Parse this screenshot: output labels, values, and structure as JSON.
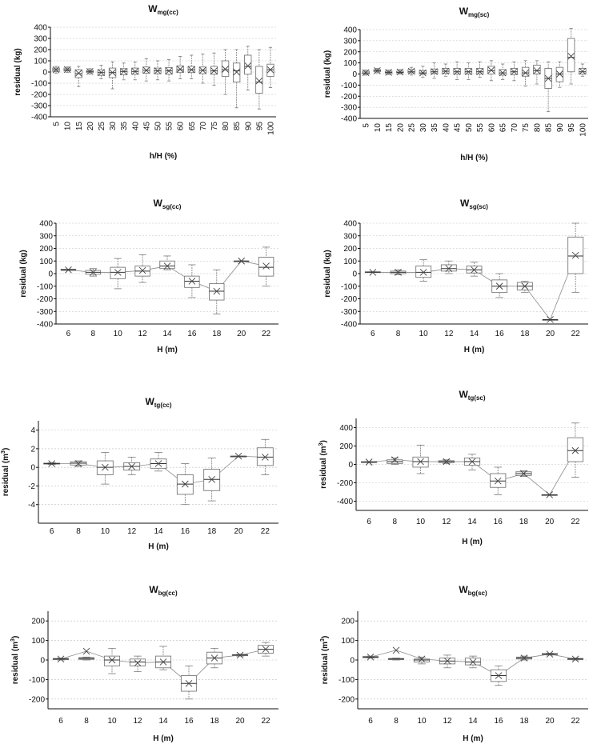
{
  "chart_data": [
    {
      "type": "box",
      "title": {
        "main": "W",
        "sub": "mg(cc)"
      },
      "ylabel": "residual (kg)",
      "ylabel_sup": "",
      "xlabel": "h/H (%)",
      "ylim": [
        -400,
        400
      ],
      "yticks": [
        -400,
        -300,
        -200,
        -100,
        0,
        100,
        200,
        300,
        400
      ],
      "categories": [
        "5",
        "10",
        "15",
        "20",
        "25",
        "30",
        "35",
        "40",
        "45",
        "50",
        "55",
        "60",
        "65",
        "70",
        "75",
        "80",
        "85",
        "90",
        "95",
        "100"
      ],
      "boxes": [
        {
          "min": -10,
          "q1": 5,
          "median": 20,
          "q3": 35,
          "max": 50,
          "mean": 20
        },
        {
          "min": -5,
          "q1": 10,
          "median": 20,
          "q3": 35,
          "max": 45,
          "mean": 22
        },
        {
          "min": -130,
          "q1": -50,
          "median": -15,
          "q3": 20,
          "max": 50,
          "mean": -10
        },
        {
          "min": -20,
          "q1": -5,
          "median": 5,
          "q3": 15,
          "max": 30,
          "mean": 5
        },
        {
          "min": -60,
          "q1": -30,
          "median": -5,
          "q3": 20,
          "max": 60,
          "mean": -5
        },
        {
          "min": -150,
          "q1": -50,
          "median": -5,
          "q3": 35,
          "max": 90,
          "mean": -5
        },
        {
          "min": -70,
          "q1": -25,
          "median": 5,
          "q3": 30,
          "max": 80,
          "mean": 5
        },
        {
          "min": -70,
          "q1": -20,
          "median": 5,
          "q3": 35,
          "max": 90,
          "mean": 5
        },
        {
          "min": -80,
          "q1": -10,
          "median": 15,
          "q3": 45,
          "max": 120,
          "mean": 15
        },
        {
          "min": -70,
          "q1": -15,
          "median": 10,
          "q3": 35,
          "max": 100,
          "mean": 10
        },
        {
          "min": -80,
          "q1": -20,
          "median": 10,
          "q3": 40,
          "max": 110,
          "mean": 10
        },
        {
          "min": -60,
          "q1": -5,
          "median": 20,
          "q3": 55,
          "max": 140,
          "mean": 25
        },
        {
          "min": -60,
          "q1": -5,
          "median": 20,
          "q3": 50,
          "max": 150,
          "mean": 20
        },
        {
          "min": -100,
          "q1": -15,
          "median": 15,
          "q3": 45,
          "max": 160,
          "mean": 15
        },
        {
          "min": -120,
          "q1": -20,
          "median": 10,
          "q3": 50,
          "max": 170,
          "mean": 10
        },
        {
          "min": -200,
          "q1": -40,
          "median": 20,
          "q3": 100,
          "max": 200,
          "mean": 25
        },
        {
          "min": -320,
          "q1": -90,
          "median": 10,
          "q3": 80,
          "max": 200,
          "mean": 0
        },
        {
          "min": -160,
          "q1": -20,
          "median": 50,
          "q3": 150,
          "max": 230,
          "mean": 55
        },
        {
          "min": -330,
          "q1": -190,
          "median": -90,
          "q3": 50,
          "max": 200,
          "mean": -80
        },
        {
          "min": -140,
          "q1": -40,
          "median": 20,
          "q3": 70,
          "max": 220,
          "mean": 20
        }
      ],
      "tick_rotation": -90,
      "mean_line": false
    },
    {
      "type": "box",
      "title": {
        "main": "W",
        "sub": "mg(sc)"
      },
      "ylabel": "residual (kg)",
      "ylabel_sup": "",
      "xlabel": "h/H (%)",
      "ylim": [
        -400,
        400
      ],
      "yticks": [
        -400,
        -300,
        -200,
        -100,
        0,
        100,
        200,
        300,
        400
      ],
      "categories": [
        "5",
        "10",
        "15",
        "20",
        "25",
        "30",
        "35",
        "40",
        "45",
        "50",
        "55",
        "60",
        "65",
        "70",
        "75",
        "80",
        "85",
        "90",
        "95",
        "100"
      ],
      "boxes": [
        {
          "min": -10,
          "q1": 0,
          "median": 10,
          "q3": 25,
          "max": 35,
          "mean": 12
        },
        {
          "min": 10,
          "q1": 20,
          "median": 30,
          "q3": 40,
          "max": 50,
          "mean": 30
        },
        {
          "min": -5,
          "q1": 5,
          "median": 15,
          "q3": 25,
          "max": 35,
          "mean": 15
        },
        {
          "min": 0,
          "q1": 10,
          "median": 15,
          "q3": 25,
          "max": 40,
          "mean": 18
        },
        {
          "min": -10,
          "q1": 10,
          "median": 20,
          "q3": 40,
          "max": 60,
          "mean": 25
        },
        {
          "min": -30,
          "q1": 0,
          "median": 10,
          "q3": 30,
          "max": 70,
          "mean": 10
        },
        {
          "min": -40,
          "q1": 5,
          "median": 20,
          "q3": 45,
          "max": 100,
          "mean": 20
        },
        {
          "min": -20,
          "q1": 5,
          "median": 25,
          "q3": 50,
          "max": 90,
          "mean": 25
        },
        {
          "min": -50,
          "q1": 0,
          "median": 20,
          "q3": 50,
          "max": 110,
          "mean": 20
        },
        {
          "min": -50,
          "q1": 0,
          "median": 20,
          "q3": 50,
          "max": 100,
          "mean": 20
        },
        {
          "min": -30,
          "q1": 0,
          "median": 20,
          "q3": 50,
          "max": 110,
          "mean": 20
        },
        {
          "min": -60,
          "q1": 0,
          "median": 30,
          "q3": 70,
          "max": 120,
          "mean": 35
        },
        {
          "min": -50,
          "q1": -10,
          "median": 10,
          "q3": 40,
          "max": 90,
          "mean": 10
        },
        {
          "min": -60,
          "q1": -5,
          "median": 20,
          "q3": 50,
          "max": 110,
          "mean": 20
        },
        {
          "min": -110,
          "q1": -20,
          "median": 10,
          "q3": 60,
          "max": 120,
          "mean": 10
        },
        {
          "min": -90,
          "q1": 0,
          "median": 30,
          "q3": 80,
          "max": 120,
          "mean": 30
        },
        {
          "min": -340,
          "q1": -130,
          "median": -40,
          "q3": 50,
          "max": 110,
          "mean": -40
        },
        {
          "min": -120,
          "q1": -70,
          "median": 0,
          "q3": 60,
          "max": 110,
          "mean": 0
        },
        {
          "min": -90,
          "q1": 20,
          "median": 150,
          "q3": 320,
          "max": 410,
          "mean": 160
        },
        {
          "min": -20,
          "q1": 0,
          "median": 20,
          "q3": 50,
          "max": 90,
          "mean": 25
        }
      ],
      "tick_rotation": -90,
      "mean_line": false
    },
    {
      "type": "box",
      "title": {
        "main": "W",
        "sub": "sg(cc)"
      },
      "ylabel": "residual (kg)",
      "ylabel_sup": "",
      "xlabel": "H (m)",
      "ylim": [
        -400,
        400
      ],
      "yticks": [
        -400,
        -300,
        -200,
        -100,
        0,
        100,
        200,
        300,
        400
      ],
      "categories": [
        "6",
        "8",
        "10",
        "12",
        "14",
        "16",
        "18",
        "20",
        "22"
      ],
      "boxes": [
        {
          "min": 25,
          "q1": 25,
          "median": 30,
          "q3": 35,
          "max": 35,
          "mean": 30
        },
        {
          "min": -20,
          "q1": -5,
          "median": 10,
          "q3": 25,
          "max": 40,
          "mean": 10
        },
        {
          "min": -120,
          "q1": -40,
          "median": 10,
          "q3": 50,
          "max": 120,
          "mean": 10
        },
        {
          "min": -70,
          "q1": -20,
          "median": 20,
          "q3": 60,
          "max": 150,
          "mean": 25
        },
        {
          "min": 30,
          "q1": 40,
          "median": 60,
          "q3": 100,
          "max": 140,
          "mean": 60
        },
        {
          "min": -190,
          "q1": -110,
          "median": -60,
          "q3": -20,
          "max": 70,
          "mean": -60
        },
        {
          "min": -320,
          "q1": -210,
          "median": -140,
          "q3": -80,
          "max": 30,
          "mean": -140
        },
        {
          "min": 100,
          "q1": 100,
          "median": 100,
          "q3": 100,
          "max": 100,
          "mean": 100
        },
        {
          "min": -100,
          "q1": -20,
          "median": 50,
          "q3": 130,
          "max": 210,
          "mean": 60
        }
      ],
      "tick_rotation": 0,
      "mean_line": true
    },
    {
      "type": "box",
      "title": {
        "main": "W",
        "sub": "sg(sc)"
      },
      "ylabel": "residual (kg)",
      "ylabel_sup": "",
      "xlabel": "H (m)",
      "ylim": [
        -400,
        400
      ],
      "yticks": [
        -400,
        -300,
        -200,
        -100,
        0,
        100,
        200,
        300,
        400
      ],
      "categories": [
        "6",
        "8",
        "10",
        "12",
        "14",
        "16",
        "18",
        "20",
        "22"
      ],
      "boxes": [
        {
          "min": 10,
          "q1": 10,
          "median": 10,
          "q3": 15,
          "max": 15,
          "mean": 10
        },
        {
          "min": -10,
          "q1": 0,
          "median": 10,
          "q3": 20,
          "max": 30,
          "mean": 10
        },
        {
          "min": -60,
          "q1": -30,
          "median": 10,
          "q3": 60,
          "max": 110,
          "mean": 10
        },
        {
          "min": 0,
          "q1": 20,
          "median": 40,
          "q3": 70,
          "max": 100,
          "mean": 40
        },
        {
          "min": -20,
          "q1": 5,
          "median": 30,
          "q3": 60,
          "max": 90,
          "mean": 30
        },
        {
          "min": -190,
          "q1": -150,
          "median": -100,
          "q3": -50,
          "max": 0,
          "mean": -100
        },
        {
          "min": -150,
          "q1": -130,
          "median": -100,
          "q3": -70,
          "max": -60,
          "mean": -100
        },
        {
          "min": -365,
          "q1": -365,
          "median": -365,
          "q3": -365,
          "max": -365,
          "mean": -365
        },
        {
          "min": -150,
          "q1": 0,
          "median": 140,
          "q3": 290,
          "max": 400,
          "mean": 145
        }
      ],
      "tick_rotation": 0,
      "mean_line": true
    },
    {
      "type": "box",
      "title": {
        "main": "W",
        "sub": "tg(cc)"
      },
      "ylabel": "residual (m",
      "ylabel_sup": "3",
      "xlabel": "H (m)",
      "ylim": [
        -6,
        5
      ],
      "yticks": [
        -4,
        -2,
        0,
        2,
        4
      ],
      "categories": [
        "6",
        "8",
        "10",
        "12",
        "14",
        "16",
        "18",
        "20",
        "22"
      ],
      "boxes": [
        {
          "min": 0.3,
          "q1": 0.35,
          "median": 0.4,
          "q3": 0.45,
          "max": 0.5,
          "mean": 0.4
        },
        {
          "min": 0.1,
          "q1": 0.25,
          "median": 0.45,
          "q3": 0.6,
          "max": 0.7,
          "mean": 0.4
        },
        {
          "min": -1.8,
          "q1": -0.8,
          "median": 0,
          "q3": 0.7,
          "max": 1.6,
          "mean": 0
        },
        {
          "min": -0.8,
          "q1": -0.3,
          "median": 0.1,
          "q3": 0.5,
          "max": 1.1,
          "mean": 0.1
        },
        {
          "min": -0.4,
          "q1": -0.1,
          "median": 0.4,
          "q3": 0.9,
          "max": 1.6,
          "mean": 0.4
        },
        {
          "min": -4,
          "q1": -2.9,
          "median": -1.8,
          "q3": -0.8,
          "max": 0.4,
          "mean": -1.8
        },
        {
          "min": -3.6,
          "q1": -2.5,
          "median": -1.3,
          "q3": -0.2,
          "max": 1.0,
          "mean": -1.3
        },
        {
          "min": 1.2,
          "q1": 1.2,
          "median": 1.2,
          "q3": 1.2,
          "max": 1.2,
          "mean": 1.2
        },
        {
          "min": -0.8,
          "q1": 0.2,
          "median": 1.1,
          "q3": 2.1,
          "max": 3.0,
          "mean": 1.1
        }
      ],
      "tick_rotation": 0,
      "mean_line": true
    },
    {
      "type": "box",
      "title": {
        "main": "W",
        "sub": "tg(sc)"
      },
      "ylabel": "residual (m",
      "ylabel_sup": "3",
      "xlabel": "H (m)",
      "ylim": [
        -500,
        500
      ],
      "yticks": [
        -400,
        -200,
        0,
        200,
        400
      ],
      "categories": [
        "6",
        "8",
        "10",
        "12",
        "14",
        "16",
        "18",
        "20",
        "22"
      ],
      "boxes": [
        {
          "min": 20,
          "q1": 20,
          "median": 25,
          "q3": 30,
          "max": 30,
          "mean": 25
        },
        {
          "min": 0,
          "q1": 10,
          "median": 30,
          "q3": 50,
          "max": 70,
          "mean": 50
        },
        {
          "min": -100,
          "q1": -30,
          "median": 30,
          "q3": 80,
          "max": 210,
          "mean": 30
        },
        {
          "min": 10,
          "q1": 20,
          "median": 30,
          "q3": 40,
          "max": 50,
          "mean": 30
        },
        {
          "min": -60,
          "q1": -10,
          "median": 30,
          "q3": 70,
          "max": 110,
          "mean": 30
        },
        {
          "min": -330,
          "q1": -250,
          "median": -180,
          "q3": -100,
          "max": -30,
          "mean": -180
        },
        {
          "min": -130,
          "q1": -120,
          "median": -100,
          "q3": -80,
          "max": -70,
          "mean": -100
        },
        {
          "min": -330,
          "q1": -330,
          "median": -330,
          "q3": -330,
          "max": -330,
          "mean": -330
        },
        {
          "min": -140,
          "q1": 30,
          "median": 150,
          "q3": 290,
          "max": 450,
          "mean": 150
        }
      ],
      "tick_rotation": 0,
      "mean_line": true
    },
    {
      "type": "box",
      "title": {
        "main": "W",
        "sub": "bg(cc)"
      },
      "ylabel": "residual (m",
      "ylabel_sup": "3",
      "xlabel": "H (m)",
      "ylim": [
        -250,
        250
      ],
      "yticks": [
        -200,
        -100,
        0,
        100,
        200
      ],
      "categories": [
        "6",
        "8",
        "10",
        "12",
        "14",
        "16",
        "18",
        "20",
        "22"
      ],
      "boxes": [
        {
          "min": 0,
          "q1": 2,
          "median": 5,
          "q3": 8,
          "max": 10,
          "mean": 5
        },
        {
          "min": 0,
          "q1": 3,
          "median": 8,
          "q3": 12,
          "max": 15,
          "mean": 45
        },
        {
          "min": -70,
          "q1": -30,
          "median": 0,
          "q3": 20,
          "max": 60,
          "mean": 0
        },
        {
          "min": -60,
          "q1": -30,
          "median": -10,
          "q3": 5,
          "max": 20,
          "mean": -15
        },
        {
          "min": -50,
          "q1": -40,
          "median": -10,
          "q3": 20,
          "max": 70,
          "mean": -10
        },
        {
          "min": -200,
          "q1": -160,
          "median": -120,
          "q3": -80,
          "max": -30,
          "mean": -120
        },
        {
          "min": -40,
          "q1": -20,
          "median": 10,
          "q3": 40,
          "max": 60,
          "mean": 10
        },
        {
          "min": 20,
          "q1": 22,
          "median": 25,
          "q3": 28,
          "max": 30,
          "mean": 25
        },
        {
          "min": 20,
          "q1": 35,
          "median": 55,
          "q3": 75,
          "max": 90,
          "mean": 55
        }
      ],
      "tick_rotation": 0,
      "mean_line": true
    },
    {
      "type": "box",
      "title": {
        "main": "W",
        "sub": "bg(sc)"
      },
      "ylabel": "residual (m",
      "ylabel_sup": "3",
      "xlabel": "H (m)",
      "ylim": [
        -250,
        250
      ],
      "yticks": [
        -200,
        -100,
        0,
        100,
        200
      ],
      "categories": [
        "6",
        "8",
        "10",
        "12",
        "14",
        "16",
        "18",
        "20",
        "22"
      ],
      "boxes": [
        {
          "min": 10,
          "q1": 12,
          "median": 15,
          "q3": 18,
          "max": 20,
          "mean": 15
        },
        {
          "min": 0,
          "q1": 2,
          "median": 5,
          "q3": 8,
          "max": 10,
          "mean": 50
        },
        {
          "min": -20,
          "q1": -10,
          "median": 0,
          "q3": 5,
          "max": 15,
          "mean": 5
        },
        {
          "min": -40,
          "q1": -20,
          "median": -5,
          "q3": 10,
          "max": 25,
          "mean": -5
        },
        {
          "min": -40,
          "q1": -25,
          "median": -10,
          "q3": 10,
          "max": 20,
          "mean": -10
        },
        {
          "min": -130,
          "q1": -110,
          "median": -80,
          "q3": -50,
          "max": -30,
          "mean": -80
        },
        {
          "min": 0,
          "q1": 5,
          "median": 10,
          "q3": 15,
          "max": 20,
          "mean": 10
        },
        {
          "min": 25,
          "q1": 28,
          "median": 30,
          "q3": 33,
          "max": 35,
          "mean": 30
        },
        {
          "min": 0,
          "q1": 2,
          "median": 5,
          "q3": 8,
          "max": 10,
          "mean": 5
        }
      ],
      "tick_rotation": 0,
      "mean_line": true
    }
  ],
  "colors": {
    "ink": "#111111",
    "grid": "#bfbfbf",
    "box": "#7a7a7a",
    "mean": "#8c8c8c"
  }
}
